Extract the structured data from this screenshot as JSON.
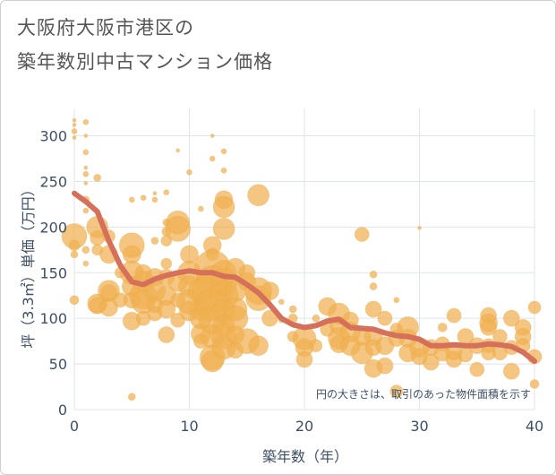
{
  "title_line1": "大阪府大阪市港区の",
  "title_line2": "築年数別中古マンション価格",
  "chart_data": {
    "type": "scatter",
    "title": "大阪府大阪市港区の築年数別中古マンション価格",
    "xlabel": "築年数（年）",
    "ylabel": "坪（3.3㎡）単価（万円）",
    "xlim": [
      0,
      40
    ],
    "ylim": [
      0,
      330
    ],
    "x_ticks": [
      0,
      10,
      20,
      30,
      40
    ],
    "y_ticks": [
      0,
      50,
      100,
      150,
      200,
      250,
      300
    ],
    "grid": true,
    "annotation": "円の大きさは、取引のあった物件面積を示す",
    "colors": {
      "bubble": "#f0b050",
      "trend": "#d5705a",
      "grid": "#dfe3ea",
      "axis_text": "#3d4f66"
    },
    "bubbles": [
      {
        "x": 0,
        "y": 317,
        "s": 2
      },
      {
        "x": 0,
        "y": 312,
        "s": 2
      },
      {
        "x": 0,
        "y": 305,
        "s": 3
      },
      {
        "x": 0,
        "y": 298,
        "s": 2
      },
      {
        "x": 0,
        "y": 190,
        "s": 14
      },
      {
        "x": 0,
        "y": 180,
        "s": 6
      },
      {
        "x": 0,
        "y": 170,
        "s": 4
      },
      {
        "x": 0,
        "y": 120,
        "s": 5
      },
      {
        "x": 1,
        "y": 315,
        "s": 3
      },
      {
        "x": 1,
        "y": 300,
        "s": 2
      },
      {
        "x": 1,
        "y": 282,
        "s": 3
      },
      {
        "x": 1,
        "y": 265,
        "s": 2
      },
      {
        "x": 1,
        "y": 258,
        "s": 3
      },
      {
        "x": 1,
        "y": 248,
        "s": 2
      },
      {
        "x": 1,
        "y": 230,
        "s": 4
      },
      {
        "x": 1,
        "y": 218,
        "s": 3
      },
      {
        "x": 1,
        "y": 175,
        "s": 4
      },
      {
        "x": 1,
        "y": 160,
        "s": 3
      },
      {
        "x": 2,
        "y": 254,
        "s": 4
      },
      {
        "x": 2,
        "y": 200,
        "s": 12
      },
      {
        "x": 2,
        "y": 188,
        "s": 8
      },
      {
        "x": 2,
        "y": 175,
        "s": 6
      },
      {
        "x": 2,
        "y": 116,
        "s": 11
      },
      {
        "x": 2,
        "y": 114,
        "s": 9
      },
      {
        "x": 3,
        "y": 190,
        "s": 7
      },
      {
        "x": 3,
        "y": 170,
        "s": 10
      },
      {
        "x": 3,
        "y": 130,
        "s": 12
      },
      {
        "x": 3,
        "y": 128,
        "s": 9
      },
      {
        "x": 3,
        "y": 112,
        "s": 10
      },
      {
        "x": 4,
        "y": 150,
        "s": 6
      },
      {
        "x": 4,
        "y": 120,
        "s": 8
      },
      {
        "x": 5,
        "y": 230,
        "s": 3
      },
      {
        "x": 5,
        "y": 180,
        "s": 14
      },
      {
        "x": 5,
        "y": 170,
        "s": 10
      },
      {
        "x": 5,
        "y": 150,
        "s": 13
      },
      {
        "x": 5,
        "y": 135,
        "s": 11
      },
      {
        "x": 5,
        "y": 120,
        "s": 9
      },
      {
        "x": 5,
        "y": 97,
        "s": 10
      },
      {
        "x": 5,
        "y": 14,
        "s": 4
      },
      {
        "x": 6,
        "y": 232,
        "s": 3
      },
      {
        "x": 6,
        "y": 150,
        "s": 9
      },
      {
        "x": 6,
        "y": 140,
        "s": 12
      },
      {
        "x": 6,
        "y": 125,
        "s": 15
      },
      {
        "x": 6,
        "y": 118,
        "s": 13
      },
      {
        "x": 6,
        "y": 100,
        "s": 8
      },
      {
        "x": 7,
        "y": 237,
        "s": 2
      },
      {
        "x": 7,
        "y": 230,
        "s": 3
      },
      {
        "x": 7,
        "y": 185,
        "s": 4
      },
      {
        "x": 7,
        "y": 145,
        "s": 10
      },
      {
        "x": 7,
        "y": 130,
        "s": 12
      },
      {
        "x": 7,
        "y": 115,
        "s": 9
      },
      {
        "x": 7,
        "y": 105,
        "s": 8
      },
      {
        "x": 8,
        "y": 238,
        "s": 3
      },
      {
        "x": 8,
        "y": 205,
        "s": 4
      },
      {
        "x": 8,
        "y": 195,
        "s": 5
      },
      {
        "x": 8,
        "y": 185,
        "s": 6
      },
      {
        "x": 8,
        "y": 160,
        "s": 6
      },
      {
        "x": 8,
        "y": 145,
        "s": 9
      },
      {
        "x": 8,
        "y": 125,
        "s": 11
      },
      {
        "x": 8,
        "y": 110,
        "s": 10
      },
      {
        "x": 8,
        "y": 82,
        "s": 9
      },
      {
        "x": 9,
        "y": 284,
        "s": 2
      },
      {
        "x": 9,
        "y": 205,
        "s": 13
      },
      {
        "x": 9,
        "y": 198,
        "s": 14
      },
      {
        "x": 9,
        "y": 140,
        "s": 11
      },
      {
        "x": 9,
        "y": 120,
        "s": 8
      },
      {
        "x": 9,
        "y": 98,
        "s": 8
      },
      {
        "x": 10,
        "y": 260,
        "s": 3
      },
      {
        "x": 10,
        "y": 170,
        "s": 10
      },
      {
        "x": 10,
        "y": 150,
        "s": 13
      },
      {
        "x": 10,
        "y": 135,
        "s": 12
      },
      {
        "x": 10,
        "y": 118,
        "s": 14
      },
      {
        "x": 10,
        "y": 108,
        "s": 11
      },
      {
        "x": 11,
        "y": 220,
        "s": 3
      },
      {
        "x": 11,
        "y": 130,
        "s": 14
      },
      {
        "x": 11,
        "y": 110,
        "s": 12
      },
      {
        "x": 11,
        "y": 100,
        "s": 12
      },
      {
        "x": 11,
        "y": 83,
        "s": 11
      },
      {
        "x": 11,
        "y": 75,
        "s": 8
      },
      {
        "x": 12,
        "y": 300,
        "s": 2
      },
      {
        "x": 12,
        "y": 275,
        "s": 3
      },
      {
        "x": 12,
        "y": 180,
        "s": 10
      },
      {
        "x": 12,
        "y": 170,
        "s": 7
      },
      {
        "x": 12,
        "y": 155,
        "s": 20
      },
      {
        "x": 12,
        "y": 140,
        "s": 18
      },
      {
        "x": 12,
        "y": 128,
        "s": 22
      },
      {
        "x": 12,
        "y": 115,
        "s": 18
      },
      {
        "x": 12,
        "y": 98,
        "s": 15
      },
      {
        "x": 12,
        "y": 80,
        "s": 13
      },
      {
        "x": 12,
        "y": 57,
        "s": 14
      },
      {
        "x": 12,
        "y": 53,
        "s": 12
      },
      {
        "x": 13,
        "y": 283,
        "s": 3
      },
      {
        "x": 13,
        "y": 262,
        "s": 3
      },
      {
        "x": 13,
        "y": 230,
        "s": 10
      },
      {
        "x": 13,
        "y": 222,
        "s": 12
      },
      {
        "x": 13,
        "y": 198,
        "s": 12
      },
      {
        "x": 13,
        "y": 150,
        "s": 14
      },
      {
        "x": 13,
        "y": 140,
        "s": 15
      },
      {
        "x": 13,
        "y": 125,
        "s": 16
      },
      {
        "x": 13,
        "y": 108,
        "s": 13
      },
      {
        "x": 13,
        "y": 92,
        "s": 12
      },
      {
        "x": 13,
        "y": 80,
        "s": 14
      },
      {
        "x": 13,
        "y": 68,
        "s": 13
      },
      {
        "x": 14,
        "y": 155,
        "s": 11
      },
      {
        "x": 14,
        "y": 130,
        "s": 12
      },
      {
        "x": 14,
        "y": 110,
        "s": 13
      },
      {
        "x": 14,
        "y": 100,
        "s": 14
      },
      {
        "x": 14,
        "y": 82,
        "s": 10
      },
      {
        "x": 14,
        "y": 65,
        "s": 9
      },
      {
        "x": 15,
        "y": 150,
        "s": 9
      },
      {
        "x": 15,
        "y": 140,
        "s": 10
      },
      {
        "x": 15,
        "y": 75,
        "s": 14
      },
      {
        "x": 16,
        "y": 235,
        "s": 12
      },
      {
        "x": 16,
        "y": 130,
        "s": 15
      },
      {
        "x": 16,
        "y": 122,
        "s": 14
      },
      {
        "x": 16,
        "y": 70,
        "s": 11
      },
      {
        "x": 17,
        "y": 130,
        "s": 10
      },
      {
        "x": 17,
        "y": 100,
        "s": 9
      },
      {
        "x": 18,
        "y": 118,
        "s": 3
      },
      {
        "x": 18,
        "y": 98,
        "s": 3
      },
      {
        "x": 19,
        "y": 110,
        "s": 4
      },
      {
        "x": 19,
        "y": 100,
        "s": 5
      },
      {
        "x": 19,
        "y": 80,
        "s": 6
      },
      {
        "x": 20,
        "y": 78,
        "s": 13
      },
      {
        "x": 20,
        "y": 68,
        "s": 10
      },
      {
        "x": 20,
        "y": 55,
        "s": 9
      },
      {
        "x": 21,
        "y": 100,
        "s": 4
      },
      {
        "x": 21,
        "y": 70,
        "s": 7
      },
      {
        "x": 22,
        "y": 113,
        "s": 10
      },
      {
        "x": 22,
        "y": 88,
        "s": 8
      },
      {
        "x": 23,
        "y": 105,
        "s": 12
      },
      {
        "x": 23,
        "y": 92,
        "s": 10
      },
      {
        "x": 23,
        "y": 78,
        "s": 12
      },
      {
        "x": 23,
        "y": 72,
        "s": 10
      },
      {
        "x": 24,
        "y": 98,
        "s": 9
      },
      {
        "x": 24,
        "y": 85,
        "s": 11
      },
      {
        "x": 24,
        "y": 70,
        "s": 11
      },
      {
        "x": 25,
        "y": 192,
        "s": 8
      },
      {
        "x": 25,
        "y": 80,
        "s": 10
      },
      {
        "x": 25,
        "y": 62,
        "s": 12
      },
      {
        "x": 26,
        "y": 148,
        "s": 4
      },
      {
        "x": 26,
        "y": 135,
        "s": 4
      },
      {
        "x": 26,
        "y": 110,
        "s": 9
      },
      {
        "x": 26,
        "y": 80,
        "s": 10
      },
      {
        "x": 26,
        "y": 68,
        "s": 9
      },
      {
        "x": 26,
        "y": 45,
        "s": 10
      },
      {
        "x": 27,
        "y": 100,
        "s": 8
      },
      {
        "x": 27,
        "y": 70,
        "s": 10
      },
      {
        "x": 27,
        "y": 48,
        "s": 9
      },
      {
        "x": 28,
        "y": 120,
        "s": 3
      },
      {
        "x": 28,
        "y": 88,
        "s": 7
      },
      {
        "x": 28,
        "y": 78,
        "s": 9
      },
      {
        "x": 28,
        "y": 20,
        "s": 7
      },
      {
        "x": 29,
        "y": 90,
        "s": 12
      },
      {
        "x": 29,
        "y": 78,
        "s": 10
      },
      {
        "x": 29,
        "y": 62,
        "s": 10
      },
      {
        "x": 30,
        "y": 199,
        "s": 2
      },
      {
        "x": 30,
        "y": 68,
        "s": 11
      },
      {
        "x": 30,
        "y": 58,
        "s": 9
      },
      {
        "x": 31,
        "y": 68,
        "s": 9
      },
      {
        "x": 31,
        "y": 52,
        "s": 9
      },
      {
        "x": 32,
        "y": 90,
        "s": 5
      },
      {
        "x": 32,
        "y": 72,
        "s": 8
      },
      {
        "x": 32,
        "y": 62,
        "s": 9
      },
      {
        "x": 33,
        "y": 103,
        "s": 8
      },
      {
        "x": 33,
        "y": 63,
        "s": 9
      },
      {
        "x": 33,
        "y": 55,
        "s": 9
      },
      {
        "x": 34,
        "y": 80,
        "s": 9
      },
      {
        "x": 34,
        "y": 60,
        "s": 8
      },
      {
        "x": 35,
        "y": 70,
        "s": 9
      },
      {
        "x": 35,
        "y": 44,
        "s": 8
      },
      {
        "x": 36,
        "y": 103,
        "s": 9
      },
      {
        "x": 36,
        "y": 95,
        "s": 10
      },
      {
        "x": 36,
        "y": 90,
        "s": 9
      },
      {
        "x": 36,
        "y": 70,
        "s": 8
      },
      {
        "x": 36,
        "y": 62,
        "s": 8
      },
      {
        "x": 37,
        "y": 80,
        "s": 8
      },
      {
        "x": 37,
        "y": 62,
        "s": 8
      },
      {
        "x": 38,
        "y": 100,
        "s": 9
      },
      {
        "x": 38,
        "y": 68,
        "s": 8
      },
      {
        "x": 38,
        "y": 42,
        "s": 9
      },
      {
        "x": 39,
        "y": 90,
        "s": 9
      },
      {
        "x": 39,
        "y": 80,
        "s": 9
      },
      {
        "x": 39,
        "y": 70,
        "s": 8
      },
      {
        "x": 40,
        "y": 112,
        "s": 7
      },
      {
        "x": 40,
        "y": 58,
        "s": 8
      },
      {
        "x": 40,
        "y": 28,
        "s": 5
      }
    ],
    "trend": {
      "x": [
        0,
        1,
        2,
        3,
        4,
        5,
        6,
        7,
        8,
        9,
        10,
        11,
        12,
        13,
        14,
        15,
        16,
        17,
        18,
        19,
        20,
        21,
        22,
        23,
        24,
        25,
        26,
        27,
        28,
        29,
        30,
        31,
        32,
        33,
        34,
        35,
        36,
        37,
        38,
        39,
        40
      ],
      "y": [
        237,
        228,
        217,
        185,
        158,
        140,
        137,
        143,
        147,
        150,
        152,
        150,
        150,
        146,
        145,
        137,
        128,
        115,
        100,
        93,
        90,
        92,
        97,
        99,
        90,
        89,
        88,
        84,
        81,
        80,
        77,
        70,
        70,
        71,
        70,
        70,
        72,
        71,
        69,
        63,
        53
      ]
    }
  }
}
